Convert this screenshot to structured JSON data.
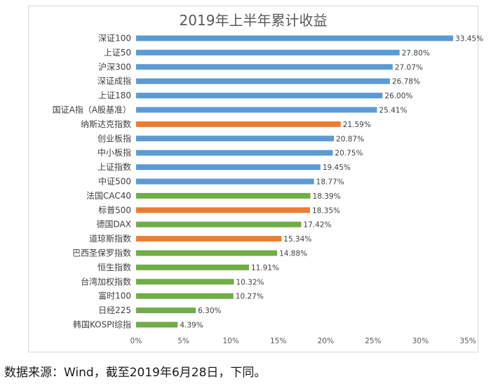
{
  "chart_data": {
    "type": "bar",
    "orientation": "horizontal",
    "title": "2019年上半年累计收益",
    "categories": [
      "深证100",
      "上证50",
      "沪深300",
      "深证成指",
      "上证180",
      "国证A指（A股基准）",
      "纳斯达克指数",
      "创业板指",
      "中小板指",
      "上证指数",
      "中证500",
      "法国CAC40",
      "标普500",
      "德国DAX",
      "道琼斯指数",
      "巴西圣保罗指数",
      "恒生指数",
      "台湾加权指数",
      "富时100",
      "日经225",
      "韩国KOSPI综指"
    ],
    "values": [
      33.45,
      27.8,
      27.07,
      26.78,
      26.0,
      25.41,
      21.59,
      20.87,
      20.75,
      19.45,
      18.77,
      18.39,
      18.35,
      17.42,
      15.34,
      14.88,
      11.91,
      10.32,
      10.27,
      6.3,
      4.39
    ],
    "value_labels": [
      "33.45%",
      "27.80%",
      "27.07%",
      "26.78%",
      "26.00%",
      "25.41%",
      "21.59%",
      "20.87%",
      "20.75%",
      "19.45%",
      "18.77%",
      "18.39%",
      "18.35%",
      "17.42%",
      "15.34%",
      "14.88%",
      "11.91%",
      "10.32%",
      "10.27%",
      "6.30%",
      "4.39%"
    ],
    "groups": [
      "A",
      "A",
      "A",
      "A",
      "A",
      "A",
      "US",
      "A",
      "A",
      "A",
      "A",
      "OTHER",
      "US",
      "OTHER",
      "US",
      "OTHER",
      "OTHER",
      "OTHER",
      "OTHER",
      "OTHER",
      "OTHER"
    ],
    "group_colors": {
      "A": "#5b9bd5",
      "US": "#ed7d31",
      "OTHER": "#70ad47"
    },
    "xlim": [
      0,
      35
    ],
    "xticks": [
      0,
      5,
      10,
      15,
      20,
      25,
      30,
      35
    ],
    "xtick_labels": [
      "0%",
      "5%",
      "10%",
      "15%",
      "20%",
      "25%",
      "30%",
      "35%"
    ],
    "xlabel": "",
    "ylabel": "",
    "grid": false
  },
  "footer": {
    "source_note": "数据来源：Wind，截至2019年6月28日，下同。"
  }
}
